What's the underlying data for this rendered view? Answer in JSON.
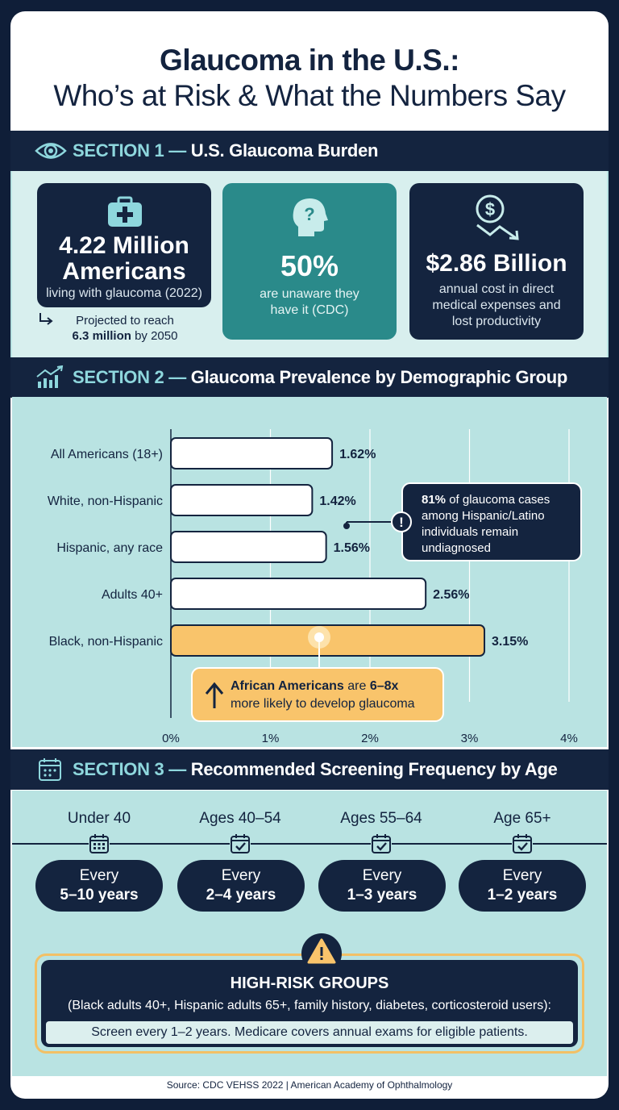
{
  "title": {
    "line1": "Glaucoma in the U.S.:",
    "line2": "Who’s at Risk & What the Numbers Say"
  },
  "section1": {
    "num": "SECTION 1 —",
    "name": "U.S. Glaucoma Burden",
    "icon": "eye-icon",
    "stats": [
      {
        "icon": "medical-kit-icon",
        "big1": "4.22 Million",
        "big2": "Americans",
        "desc": "living with glaucoma (2022)"
      },
      {
        "icon": "head-question-icon",
        "big1": "50%",
        "desc1": "are unaware they",
        "desc2": "have it (CDC)"
      },
      {
        "icon": "dollar-down-icon",
        "big1": "$2.86 Billion",
        "desc1": "annual cost in direct",
        "desc2": "medical expenses and",
        "desc3": "lost productivity"
      }
    ],
    "projection": {
      "line1": "Projected to reach",
      "bold": "6.3 million",
      "rest": " by 2050"
    }
  },
  "section2": {
    "num": "SECTION 2 —",
    "name": "Glaucoma Prevalence by Demographic Group",
    "icon": "trend-chart-icon"
  },
  "chart_data": {
    "type": "bar",
    "orientation": "horizontal",
    "categories": [
      "All Americans (18+)",
      "White, non-Hispanic",
      "Hispanic, any race",
      "Adults 40+",
      "Black, non-Hispanic"
    ],
    "values": [
      1.62,
      1.42,
      1.56,
      2.56,
      3.15
    ],
    "value_labels": [
      "1.62%",
      "1.42%",
      "1.56%",
      "2.56%",
      "3.15%"
    ],
    "highlight_index": 4,
    "xlim": [
      0,
      4
    ],
    "xticks": [
      "0%",
      "1%",
      "2%",
      "3%",
      "4%"
    ],
    "grid": true,
    "colors": {
      "bar": "#ffffff",
      "highlight": "#f9c46b",
      "outline": "#14243f"
    },
    "annotations": [
      {
        "bold": "81%",
        "text1": " of glaucoma cases",
        "text2": "among Hispanic/Latino",
        "text3": "individuals remain",
        "text4": "undiagnosed"
      },
      {
        "bold": "African Americans",
        "text1": " are ",
        "bold2": "6–8x",
        "text2": "more likely to develop glaucoma"
      }
    ]
  },
  "section3": {
    "num": "SECTION 3 —",
    "name": "Recommended Screening Frequency by Age",
    "icon": "calendar-icon",
    "ages": [
      {
        "label": "Under 40",
        "every": "Every",
        "freq": "5–10 years"
      },
      {
        "label": "Ages 40–54",
        "every": "Every",
        "freq": "2–4 years"
      },
      {
        "label": "Ages 55–64",
        "every": "Every",
        "freq": "1–3 years"
      },
      {
        "label": "Age 65+",
        "every": "Every",
        "freq": "1–2 years"
      }
    ],
    "high_risk": {
      "title": "HIGH-RISK GROUPS",
      "groups": "(Black adults 40+, Hispanic adults 65+, family history, diabetes, corticosteroid users):",
      "advice": "Screen every 1–2 years. Medicare covers annual exams for eligible patients."
    }
  },
  "source": "Source: CDC VEHSS 2022 | American Academy of Ophthalmology"
}
